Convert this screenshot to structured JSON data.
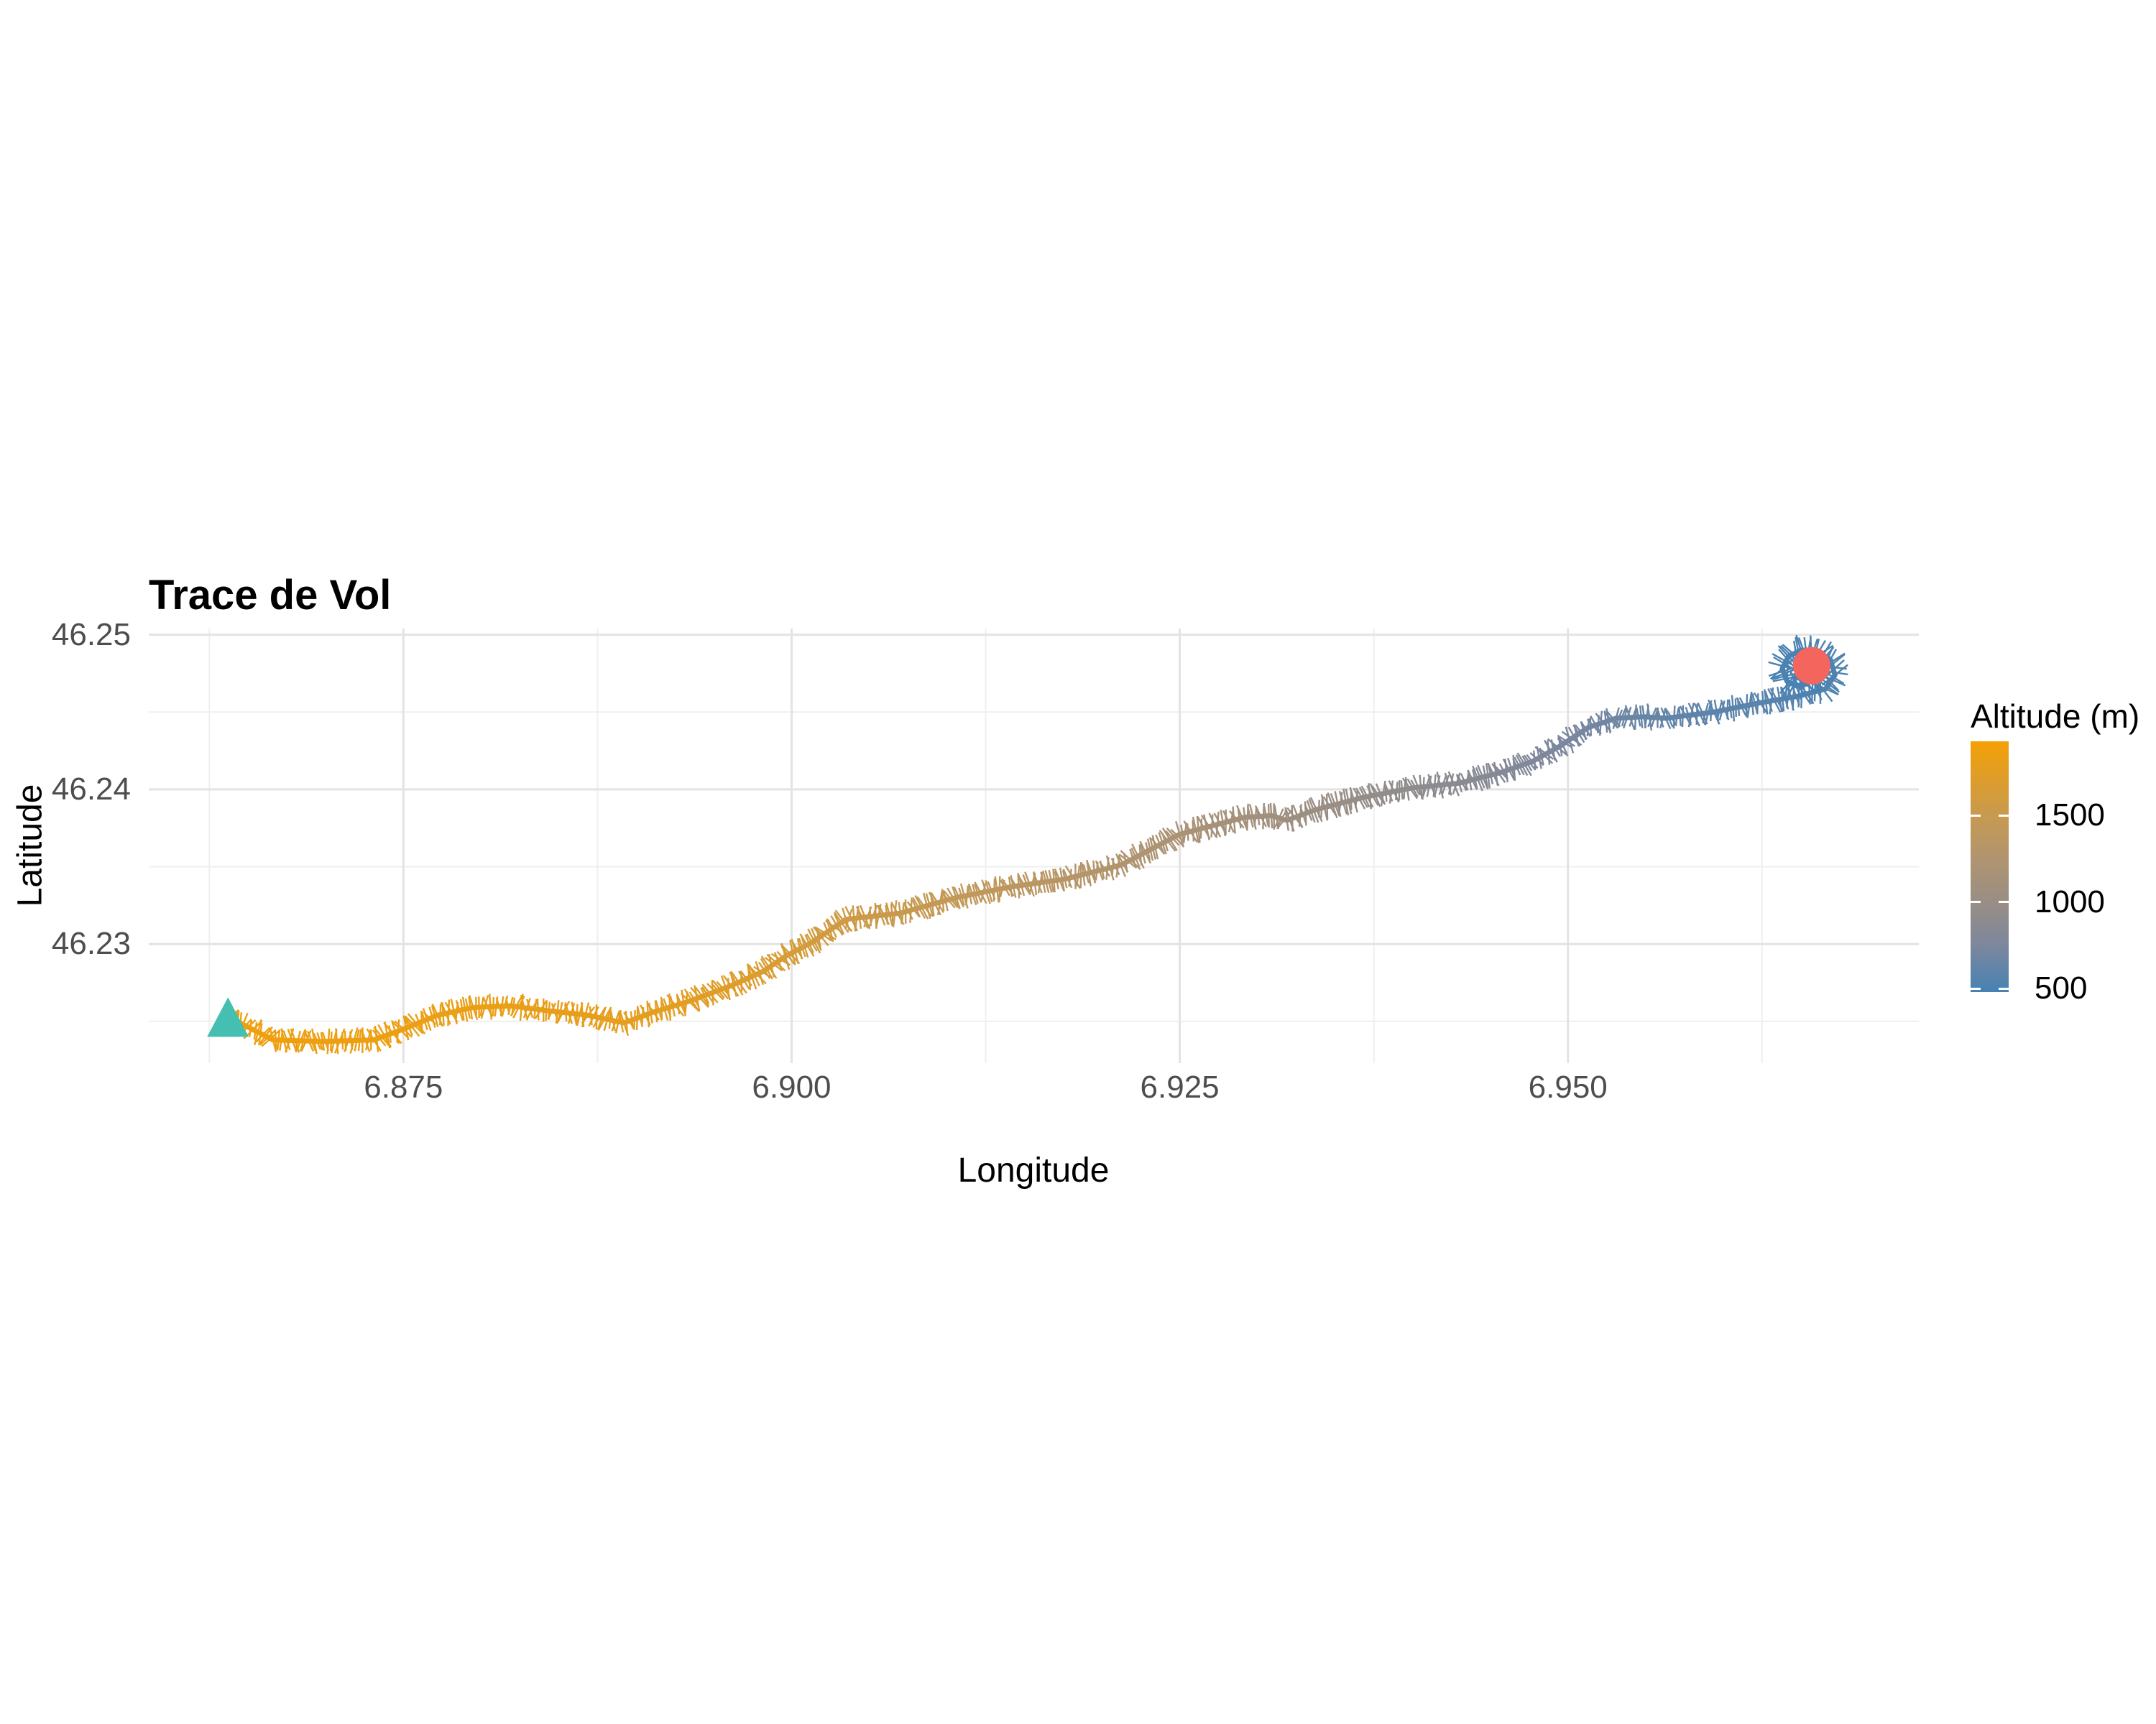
{
  "title": {
    "text": "Trace de Vol"
  },
  "axes": {
    "x": {
      "label": "Longitude",
      "tick_labels": [
        "6.875",
        "6.900",
        "6.925",
        "6.950"
      ],
      "tick_values": [
        6.875,
        6.9,
        6.925,
        6.95
      ],
      "minor_tick_values": [
        6.8625,
        6.8875,
        6.9125,
        6.9375,
        6.9625
      ],
      "range": [
        6.8586,
        6.9726
      ]
    },
    "y": {
      "label": "Latitude",
      "tick_labels": [
        "46.25",
        "46.24",
        "46.23"
      ],
      "tick_values": [
        46.25,
        46.24,
        46.23
      ],
      "minor_tick_values": [
        46.225,
        46.235,
        46.245
      ],
      "range": [
        46.2223,
        46.2504
      ]
    }
  },
  "legend": {
    "title": "Altitude (m)",
    "tick_labels": [
      "1500",
      "1000",
      "500"
    ],
    "tick_values": [
      1500,
      1000,
      500
    ],
    "range": [
      480,
      1930
    ],
    "gradient_stops": [
      {
        "alt": 480,
        "color": "#4682B4"
      },
      {
        "alt": 750,
        "color": "#7D879D"
      },
      {
        "alt": 1000,
        "color": "#998E85"
      },
      {
        "alt": 1250,
        "color": "#B09470"
      },
      {
        "alt": 1500,
        "color": "#C79A50"
      },
      {
        "alt": 1930,
        "color": "#F5A005"
      }
    ]
  },
  "style_colors": {
    "grid_major": "#E3E3E3",
    "grid_minor": "#EFEFEF",
    "tick_text": "#4D4D4D",
    "title_text": "#000000"
  },
  "markers": {
    "start": {
      "shape": "triangle",
      "lon": 6.8637,
      "lat": 46.2253,
      "color": "#44BFB1"
    },
    "end": {
      "shape": "circle",
      "lon": 6.9657,
      "lat": 46.248,
      "color": "#F4655D"
    }
  },
  "chart_data": {
    "type": "scatter",
    "title": "Trace de Vol",
    "xlabel": "Longitude",
    "ylabel": "Latitude",
    "xlim": [
      6.8586,
      6.9726
    ],
    "ylim": [
      46.2223,
      46.2504
    ],
    "x_ticks": [
      6.875,
      6.9,
      6.925,
      6.95
    ],
    "y_ticks": [
      46.23,
      46.24,
      46.25
    ],
    "grid": true,
    "legend_position": "right",
    "color_scale": {
      "label": "Altitude (m)",
      "low_color": "#4682B4",
      "high_color": "#F5A005",
      "domain": [
        480,
        1930
      ],
      "ticks": [
        500,
        1000,
        1500
      ]
    },
    "track": [
      [
        6.8637,
        46.2253,
        1880
      ],
      [
        6.8666,
        46.2238,
        1872
      ],
      [
        6.8698,
        46.2237,
        1863
      ],
      [
        6.8731,
        46.2238,
        1855
      ],
      [
        6.875,
        46.2245,
        1848
      ],
      [
        6.8772,
        46.2254,
        1840
      ],
      [
        6.8795,
        46.2259,
        1832
      ],
      [
        6.8819,
        46.226,
        1823
      ],
      [
        6.8842,
        46.2257,
        1812
      ],
      [
        6.8869,
        46.2254,
        1800
      ],
      [
        6.8892,
        46.2249,
        1788
      ],
      [
        6.8911,
        46.2256,
        1772
      ],
      [
        6.8934,
        46.2263,
        1755
      ],
      [
        6.8961,
        46.2273,
        1720
      ],
      [
        6.8981,
        46.2282,
        1685
      ],
      [
        6.8996,
        46.2292,
        1648
      ],
      [
        6.9013,
        46.2301,
        1610
      ],
      [
        6.9035,
        46.2316,
        1565
      ],
      [
        6.907,
        46.232,
        1505
      ],
      [
        6.9106,
        46.233,
        1445
      ],
      [
        6.9141,
        46.2337,
        1385
      ],
      [
        6.9176,
        46.2342,
        1322
      ],
      [
        6.9212,
        46.2351,
        1258
      ],
      [
        6.9231,
        46.2361,
        1222
      ],
      [
        6.925,
        46.2371,
        1185
      ],
      [
        6.9269,
        46.2376,
        1150
      ],
      [
        6.9292,
        46.2382,
        1115
      ],
      [
        6.9309,
        46.2383,
        1082
      ],
      [
        6.9319,
        46.238,
        1052
      ],
      [
        6.9338,
        46.2387,
        1015
      ],
      [
        6.9369,
        46.2395,
        962
      ],
      [
        6.94,
        46.2401,
        912
      ],
      [
        6.943,
        46.2404,
        865
      ],
      [
        6.9457,
        46.2411,
        822
      ],
      [
        6.9477,
        46.2418,
        785
      ],
      [
        6.9495,
        46.2428,
        748
      ],
      [
        6.9513,
        46.244,
        712
      ],
      [
        6.9531,
        46.2446,
        678
      ],
      [
        6.9549,
        46.2447,
        648
      ],
      [
        6.9563,
        46.2446,
        622
      ],
      [
        6.9594,
        46.245,
        595
      ],
      [
        6.9624,
        46.2456,
        568
      ],
      [
        6.9647,
        46.246,
        545
      ],
      [
        6.9666,
        46.2465,
        528
      ],
      [
        6.9672,
        46.2474,
        518
      ],
      [
        6.9669,
        46.2484,
        512
      ],
      [
        6.966,
        46.249,
        508
      ],
      [
        6.965,
        46.249,
        505
      ],
      [
        6.9642,
        46.2486,
        502
      ],
      [
        6.9638,
        46.2478,
        500
      ],
      [
        6.9641,
        46.247,
        497
      ],
      [
        6.9647,
        46.2467,
        494
      ],
      [
        6.9653,
        46.2468,
        492
      ],
      [
        6.9657,
        46.2473,
        490
      ],
      [
        6.9657,
        46.2477,
        488
      ]
    ]
  }
}
